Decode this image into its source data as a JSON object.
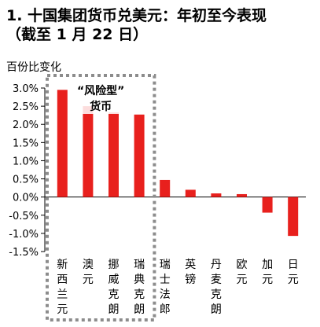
{
  "title_line1": "1. 十国集团货币兑美元：年初至今表现",
  "title_line2": "（截至 1 月 22 日）",
  "chart_data": {
    "type": "bar",
    "ylabel": "百份比变化",
    "categories": [
      "新西兰元",
      "澳元",
      "挪威克朗",
      "瑞典克朗",
      "瑞士法郎",
      "英镑",
      "丹麦克朗",
      "欧元",
      "加元",
      "日元"
    ],
    "values": [
      2.95,
      2.5,
      2.33,
      2.27,
      0.47,
      0.2,
      0.1,
      0.08,
      -0.43,
      -1.07
    ],
    "ylim": [
      -1.5,
      3.0
    ],
    "yticks": [
      "3.0%",
      "2.5%",
      "2.0%",
      "1.5%",
      "1.0%",
      "0.5%",
      "0.0%",
      "-0.5%",
      "-1.0%",
      "-1.5%"
    ],
    "bar_color": "#e8201d",
    "highlight_box_color": "#8c8c8c",
    "annotation_lines": [
      "“风险型”",
      "货币"
    ],
    "highlighted_categories": [
      "新西兰元",
      "澳元",
      "挪威克朗",
      "瑞典克朗"
    ],
    "grid": false
  }
}
